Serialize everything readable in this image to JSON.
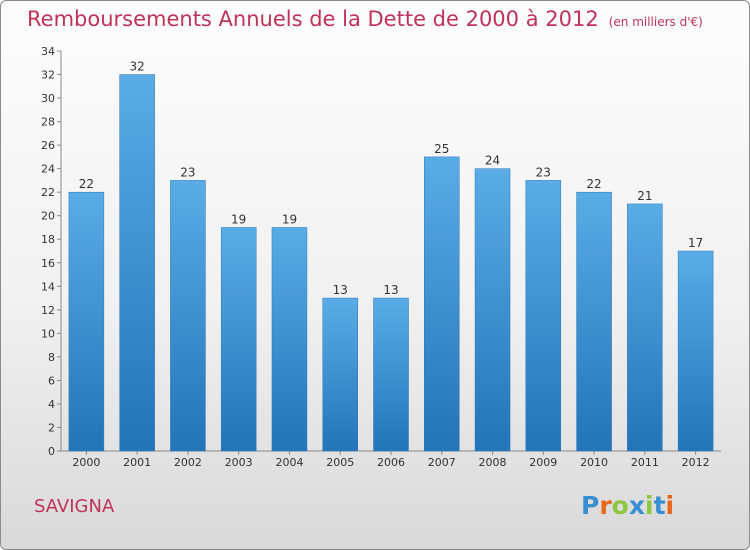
{
  "header": {
    "title": "Remboursements Annuels de la Dette de 2000 à 2012",
    "unit": "(en milliers d'€)"
  },
  "footer": {
    "commune": "SAVIGNA"
  },
  "logo": {
    "text": "Proxiti",
    "letters": [
      {
        "ch": "P",
        "color": "#3a8fd1"
      },
      {
        "ch": "r",
        "color": "#e8681a"
      },
      {
        "ch": "o",
        "color": "#8dc63f"
      },
      {
        "ch": "x",
        "color": "#3a8fd1"
      },
      {
        "ch": "i",
        "color": "#8dc63f"
      },
      {
        "ch": "t",
        "color": "#3a8fd1"
      },
      {
        "ch": "i",
        "color": "#e8681a"
      }
    ]
  },
  "colors": {
    "bar_light": "#5aace6",
    "bar_dark": "#2374b8",
    "title": "#c0325a"
  },
  "chart_data": {
    "type": "bar",
    "title": "Remboursements Annuels de la Dette de 2000 à 2012",
    "subtitle": "(en milliers d'€)",
    "categories": [
      "2000",
      "2001",
      "2002",
      "2003",
      "2004",
      "2005",
      "2006",
      "2007",
      "2008",
      "2009",
      "2010",
      "2011",
      "2012"
    ],
    "values": [
      22,
      32,
      23,
      19,
      19,
      13,
      13,
      25,
      24,
      23,
      22,
      21,
      17
    ],
    "ylim": [
      0,
      34
    ],
    "yticks": [
      0,
      2,
      4,
      6,
      8,
      10,
      12,
      14,
      16,
      18,
      20,
      22,
      24,
      26,
      28,
      30,
      32,
      34
    ],
    "grid": false,
    "xlabel": "",
    "ylabel": ""
  }
}
